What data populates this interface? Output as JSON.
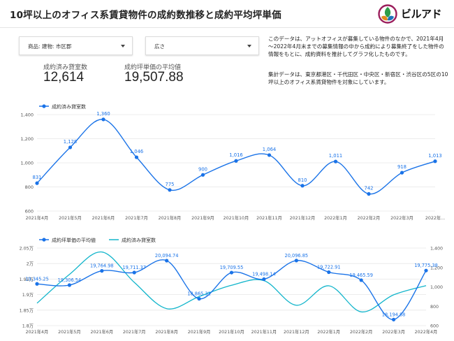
{
  "header": {
    "title": "10坪以上のオフィス系賃貸物件の成約数推移と成約平均坪単価",
    "logo_text": "ビルアド"
  },
  "filters": [
    {
      "label": "商品: 建物: 市区郡"
    },
    {
      "label": "広さ"
    }
  ],
  "kpis": [
    {
      "label": "成約済み貸室数",
      "value": "12,614"
    },
    {
      "label": "成約坪単価の平均値",
      "value": "19,507.88"
    }
  ],
  "description": {
    "para1": "このデータは、アットオフィスが募集している物件のなかで、2021年4月～2022年4月末までの募集情報の中から成約により募集終了をした物件の情報をもとに、成約資料を推計してグラフ化したものです。",
    "para2": "集計データは、東京都港区・千代田区・中央区・新宿区・渋谷区の5区の10坪以上のオフィス系賃貸物件を対象にしています。"
  },
  "colors": {
    "primary": "#1a73e8",
    "secondary": "#12b5cb",
    "grid": "#e6e6e6"
  },
  "chart_data": [
    {
      "type": "line",
      "categories": [
        "2021年4月",
        "2021年5月",
        "2021年6月",
        "2021年7月",
        "2021年8月",
        "2021年9月",
        "2021年10月",
        "2021年11月",
        "2021年12月",
        "2022年1月",
        "2022年2月",
        "2022年3月",
        "2022年..."
      ],
      "series": [
        {
          "name": "成約済み貸室数",
          "values": [
            831,
            1128,
            1360,
            1046,
            775,
            900,
            1016,
            1064,
            810,
            1011,
            742,
            918,
            1013
          ],
          "labels": [
            "831",
            "1,128",
            "1,360",
            "1,046",
            "775",
            "900",
            "1,016",
            "1,064",
            "810",
            "1,011",
            "742",
            "918",
            "1,013"
          ]
        }
      ],
      "ylim": [
        600,
        1400
      ],
      "yticks": [
        600,
        800,
        1000,
        1200,
        1400
      ],
      "ytick_labels": [
        "600",
        "800",
        "1,000",
        "1,200",
        "1,400"
      ],
      "legend_position": "top-left",
      "grid": true
    },
    {
      "type": "line",
      "categories": [
        "2021年4月",
        "2021年5月",
        "2021年6月",
        "2021年7月",
        "2021年8月",
        "2021年9月",
        "2021年10月",
        "2021年11月",
        "2021年12月",
        "2022年1月",
        "2022年2月",
        "2022年3月",
        "2022年4月"
      ],
      "series": [
        {
          "name": "成約坪単価の平均値",
          "axis": "left",
          "values": [
            19345.25,
            19306.54,
            19764.98,
            19711.37,
            20094.74,
            18865.31,
            19709.55,
            19498.14,
            20096.85,
            19722.91,
            19465.59,
            18194.88,
            19775.38
          ],
          "labels": [
            "19,345.25",
            "19,306.54",
            "19,764.98",
            "19,711.37",
            "20,094.74",
            "18,865.31",
            "19,709.55",
            "19,498.14",
            "20,096.85",
            "19,722.91",
            "19,465.59",
            "18,194.88",
            "19,775.38"
          ]
        },
        {
          "name": "成約済み貸室数",
          "axis": "right",
          "values": [
            831,
            1128,
            1360,
            1046,
            775,
            900,
            1016,
            1064,
            810,
            1011,
            742,
            918,
            1013
          ]
        }
      ],
      "ylim_left": [
        18000,
        20500
      ],
      "yticks_left": [
        18000,
        18500,
        19000,
        19500,
        20000,
        20500
      ],
      "ytick_labels_left": [
        "1.8万",
        "1.85万",
        "1.9万",
        "1.95万",
        "2万",
        "2.05万"
      ],
      "ylim_right": [
        600,
        1400
      ],
      "yticks_right": [
        600,
        800,
        1000,
        1200,
        1400
      ],
      "ytick_labels_right": [
        "600",
        "800",
        "1,000",
        "1,200",
        "1,400"
      ],
      "legend_position": "top-left",
      "grid": true
    }
  ]
}
